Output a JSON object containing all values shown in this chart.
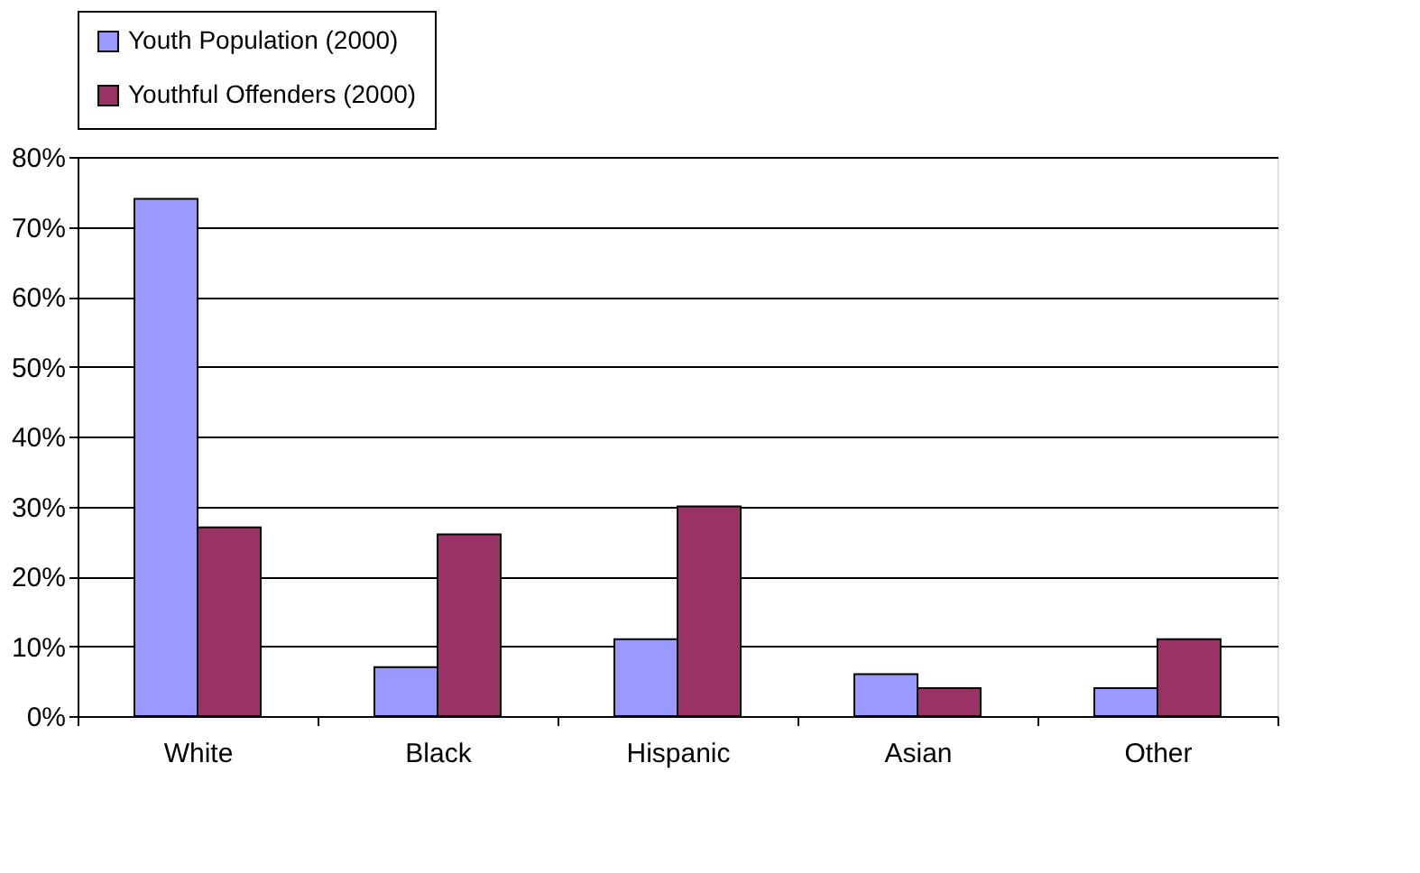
{
  "chart_data": {
    "type": "bar",
    "categories": [
      "White",
      "Black",
      "Hispanic",
      "Asian",
      "Other"
    ],
    "series": [
      {
        "name": "Youth Population (2000)",
        "color": "#9999ff",
        "values": [
          74,
          7,
          11,
          6,
          4
        ]
      },
      {
        "name": "Youthful Offenders (2000)",
        "color": "#993366",
        "values": [
          27,
          26,
          30,
          4,
          11
        ]
      }
    ],
    "ylim": [
      0,
      80
    ],
    "yticks": [
      {
        "value": 0,
        "label": "0%"
      },
      {
        "value": 10,
        "label": "10%"
      },
      {
        "value": 20,
        "label": "20%"
      },
      {
        "value": 30,
        "label": "30%"
      },
      {
        "value": 40,
        "label": "40%"
      },
      {
        "value": 50,
        "label": "50%"
      },
      {
        "value": 60,
        "label": "60%"
      },
      {
        "value": 70,
        "label": "70%"
      },
      {
        "value": 80,
        "label": "80%"
      }
    ],
    "grid": "y",
    "legend": "top"
  }
}
